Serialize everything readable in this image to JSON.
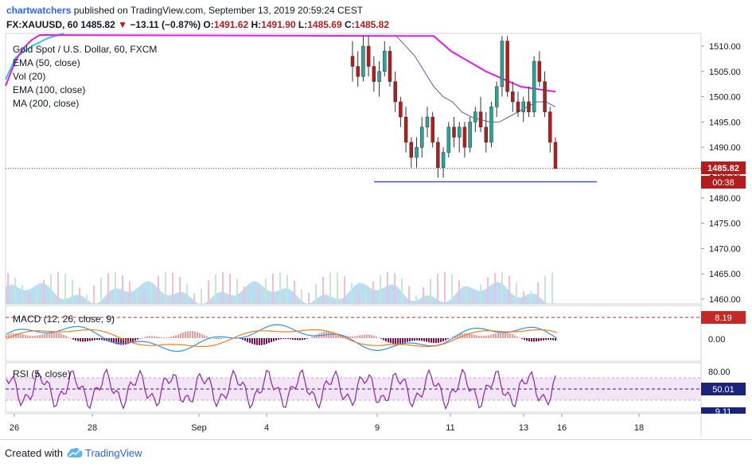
{
  "header": {
    "author": "chartwatchers",
    "published_text": "published on TradingView.com, September 13, 2019 20:59:24 CEST",
    "symbol": "FX:XAUUSD, 60",
    "last": "1485.82",
    "arrow": "▼",
    "change": "−13.11 (−0.87%)",
    "o_label": "O:",
    "o_value": "1491.62",
    "h_label": "H:",
    "h_value": "1491.90",
    "l_label": "L:",
    "l_value": "1485.69",
    "c_label": "C:",
    "c_value": "1485.82"
  },
  "legend": {
    "main_title": "Gold Spot / U.S. Dollar, 60, FXCM",
    "items": [
      "EMA (50, close)",
      "Vol (20)",
      "EMA (100, close)",
      "MA (200, close)"
    ],
    "macd": "MACD (12, 26, close, 9)",
    "rsi": "RSI (5, close)"
  },
  "price_axis": {
    "ticks": [
      "1510.00",
      "1505.00",
      "1500.00",
      "1495.00",
      "1490.00",
      "1485.00",
      "1480.00",
      "1475.00",
      "1470.00",
      "1465.00",
      "1460.00"
    ],
    "last_price_label": "1485.82",
    "countdown_label": "00:38"
  },
  "macd_axis": {
    "ticks": [
      "0.00"
    ],
    "badge": "8.19"
  },
  "rsi_axis": {
    "ticks": [
      "80.00"
    ],
    "badge": "50.01",
    "badge2": "9.11"
  },
  "time_axis": {
    "labels": [
      "26",
      "28",
      "Sep",
      "4",
      "9",
      "11",
      "13",
      "16",
      "18"
    ]
  },
  "footer": {
    "created_with": "Created with",
    "brand": "TradingView",
    "logo_icon": "tradingview-cloud-logo"
  },
  "colors": {
    "up": "#26a69a",
    "down": "#b71c1c",
    "ema50": "#5c5fad",
    "ema100": "#e01ee8",
    "ma200": "#2ec4e6",
    "volume": "#a8d4f0",
    "support_line": "#3f51d8",
    "macd_line": "#2196f3",
    "signal_line": "#ff7b1a",
    "rsi_line": "#8e24aa",
    "rsi_band": "#f3e5f5"
  },
  "chart_data": {
    "type": "candlestick",
    "symbol": "XAUUSD",
    "interval": "60",
    "ylim": [
      1458,
      1512
    ],
    "last_price": 1485.82,
    "support_level": 1483.2,
    "x_labels": [
      "26",
      "28",
      "Sep",
      "4",
      "9",
      "11",
      "13",
      "16",
      "18"
    ],
    "candles": [
      {
        "o": 1508,
        "h": 1511,
        "l": 1503,
        "c": 1506
      },
      {
        "o": 1506,
        "h": 1509,
        "l": 1502,
        "c": 1504
      },
      {
        "o": 1504,
        "h": 1512,
        "l": 1503,
        "c": 1510
      },
      {
        "o": 1510,
        "h": 1512,
        "l": 1504,
        "c": 1506
      },
      {
        "o": 1506,
        "h": 1508,
        "l": 1501,
        "c": 1503
      },
      {
        "o": 1503,
        "h": 1507,
        "l": 1500,
        "c": 1505
      },
      {
        "o": 1505,
        "h": 1511,
        "l": 1504,
        "c": 1509
      },
      {
        "o": 1509,
        "h": 1510,
        "l": 1502,
        "c": 1503
      },
      {
        "o": 1503,
        "h": 1505,
        "l": 1497,
        "c": 1499
      },
      {
        "o": 1499,
        "h": 1500,
        "l": 1494,
        "c": 1496
      },
      {
        "o": 1496,
        "h": 1498,
        "l": 1489,
        "c": 1491
      },
      {
        "o": 1491,
        "h": 1492,
        "l": 1486,
        "c": 1488
      },
      {
        "o": 1488,
        "h": 1492,
        "l": 1486,
        "c": 1490
      },
      {
        "o": 1490,
        "h": 1496,
        "l": 1488,
        "c": 1494
      },
      {
        "o": 1494,
        "h": 1498,
        "l": 1492,
        "c": 1496
      },
      {
        "o": 1496,
        "h": 1497,
        "l": 1490,
        "c": 1491
      },
      {
        "o": 1491,
        "h": 1492,
        "l": 1484,
        "c": 1486
      },
      {
        "o": 1486,
        "h": 1490,
        "l": 1484,
        "c": 1489
      },
      {
        "o": 1489,
        "h": 1495,
        "l": 1488,
        "c": 1494
      },
      {
        "o": 1494,
        "h": 1496,
        "l": 1490,
        "c": 1492
      },
      {
        "o": 1492,
        "h": 1495,
        "l": 1489,
        "c": 1494
      },
      {
        "o": 1494,
        "h": 1495,
        "l": 1488,
        "c": 1490
      },
      {
        "o": 1490,
        "h": 1496,
        "l": 1489,
        "c": 1495
      },
      {
        "o": 1495,
        "h": 1498,
        "l": 1493,
        "c": 1497
      },
      {
        "o": 1497,
        "h": 1500,
        "l": 1493,
        "c": 1494
      },
      {
        "o": 1494,
        "h": 1497,
        "l": 1489,
        "c": 1491
      },
      {
        "o": 1491,
        "h": 1499,
        "l": 1490,
        "c": 1498
      },
      {
        "o": 1498,
        "h": 1503,
        "l": 1496,
        "c": 1502
      },
      {
        "o": 1502,
        "h": 1512,
        "l": 1500,
        "c": 1511
      },
      {
        "o": 1511,
        "h": 1512,
        "l": 1500,
        "c": 1501
      },
      {
        "o": 1501,
        "h": 1503,
        "l": 1497,
        "c": 1499
      },
      {
        "o": 1499,
        "h": 1501,
        "l": 1496,
        "c": 1497
      },
      {
        "o": 1497,
        "h": 1500,
        "l": 1495,
        "c": 1499
      },
      {
        "o": 1499,
        "h": 1502,
        "l": 1496,
        "c": 1497
      },
      {
        "o": 1497,
        "h": 1508,
        "l": 1496,
        "c": 1507
      },
      {
        "o": 1507,
        "h": 1509,
        "l": 1502,
        "c": 1503
      },
      {
        "o": 1503,
        "h": 1505,
        "l": 1496,
        "c": 1497
      },
      {
        "o": 1497,
        "h": 1498,
        "l": 1489,
        "c": 1491
      },
      {
        "o": 1491,
        "h": 1492,
        "l": 1485.7,
        "c": 1485.82
      }
    ],
    "ema50": [
      1512,
      1510,
      1508,
      1505,
      1502,
      1500,
      1499,
      1497,
      1496,
      1495.5,
      1495,
      1495,
      1496,
      1497,
      1498,
      1499,
      1499,
      1498
    ],
    "ema100": [
      1512,
      1509,
      1507,
      1505,
      1503.5,
      1502,
      1501.5,
      1501
    ],
    "macd_badge": 8.19,
    "rsi_badge": 50.01,
    "rsi_levels": [
      80,
      20
    ]
  }
}
